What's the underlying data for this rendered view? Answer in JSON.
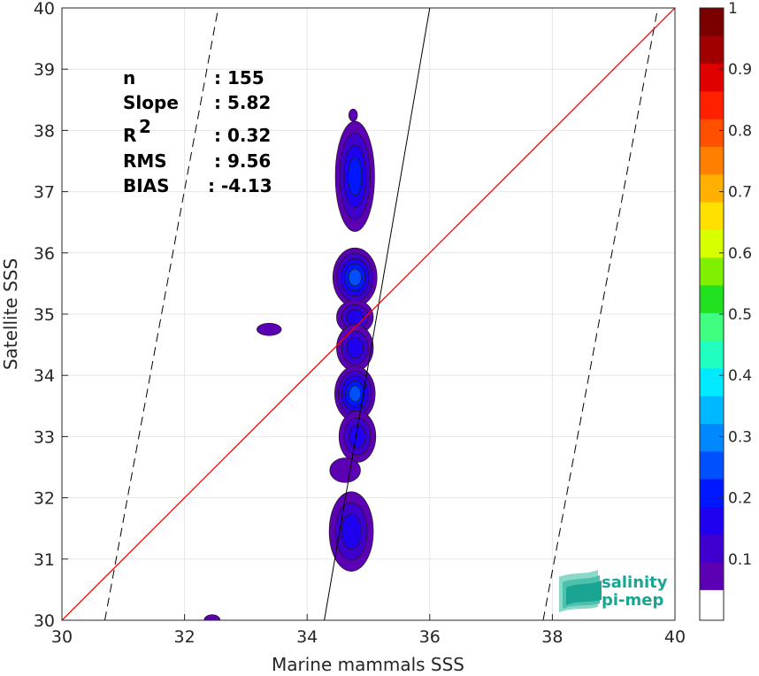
{
  "chart_data": {
    "type": "contour",
    "xlabel": "Marine mammals SSS",
    "ylabel": "Satellite SSS",
    "xlim": [
      30,
      40
    ],
    "ylim": [
      30,
      40
    ],
    "xticks": [
      "30",
      "32",
      "34",
      "36",
      "38",
      "40"
    ],
    "yticks": [
      "30",
      "31",
      "32",
      "33",
      "34",
      "35",
      "36",
      "37",
      "38",
      "39",
      "40"
    ],
    "grid": true,
    "identity_line": {
      "color": "#ff0000",
      "x": [
        30,
        40
      ],
      "y": [
        30,
        40
      ]
    },
    "regression_line": {
      "slope": 5.82,
      "x": [
        34.28,
        36.0
      ],
      "y": [
        30,
        40
      ]
    },
    "bound_lines": [
      {
        "style": "dashed",
        "x": [
          30.7,
          32.55
        ],
        "y": [
          30,
          40
        ]
      },
      {
        "style": "dashed",
        "x": [
          37.85,
          39.72
        ],
        "y": [
          30,
          40
        ]
      }
    ],
    "stats": [
      {
        "label": "n",
        "value": ": 155"
      },
      {
        "label": "Slope",
        "value": ": 5.82"
      },
      {
        "label": "R",
        "sup": "2",
        "value": ": 0.32"
      },
      {
        "label": "RMS",
        "value": ": 9.56"
      },
      {
        "label": "BIAS",
        "value": ": -4.13"
      }
    ],
    "colorbar": {
      "min": 0,
      "max": 1,
      "ticks": [
        "0.1",
        "0.2",
        "0.3",
        "0.4",
        "0.5",
        "0.6",
        "0.7",
        "0.8",
        "0.9",
        "1"
      ],
      "levels": 20,
      "colors": [
        "#ffffff",
        "#5c00b4",
        "#3f00cf",
        "#1f00ef",
        "#0018ff",
        "#0050ff",
        "#0088ff",
        "#00b8ff",
        "#00eaff",
        "#20ffc0",
        "#40ff80",
        "#20e020",
        "#80f000",
        "#d8ff00",
        "#ffe000",
        "#ffb000",
        "#ff8000",
        "#ff5000",
        "#ff2000",
        "#e00000",
        "#a00000",
        "#7a0000"
      ]
    },
    "density_blobs": [
      {
        "x": 34.78,
        "y": 37.25,
        "rx": 0.32,
        "ry": 0.9,
        "level": 4
      },
      {
        "x": 34.78,
        "y": 35.6,
        "rx": 0.36,
        "ry": 0.48,
        "level": 5
      },
      {
        "x": 34.78,
        "y": 34.95,
        "rx": 0.3,
        "ry": 0.28,
        "level": 3
      },
      {
        "x": 34.78,
        "y": 34.45,
        "rx": 0.3,
        "ry": 0.38,
        "level": 3
      },
      {
        "x": 34.78,
        "y": 33.7,
        "rx": 0.33,
        "ry": 0.45,
        "level": 5
      },
      {
        "x": 34.82,
        "y": 33.0,
        "rx": 0.3,
        "ry": 0.42,
        "level": 3
      },
      {
        "x": 34.62,
        "y": 32.45,
        "rx": 0.25,
        "ry": 0.2,
        "level": 1
      },
      {
        "x": 34.72,
        "y": 31.45,
        "rx": 0.36,
        "ry": 0.65,
        "level": 3
      },
      {
        "x": 33.38,
        "y": 34.75,
        "rx": 0.2,
        "ry": 0.1,
        "level": 1
      },
      {
        "x": 32.45,
        "y": 30.0,
        "rx": 0.13,
        "ry": 0.09,
        "level": 1
      },
      {
        "x": 34.75,
        "y": 38.25,
        "rx": 0.07,
        "ry": 0.1,
        "level": 1
      }
    ],
    "legend": {
      "logo_line1": "salinity",
      "logo_line2": "pi-mep"
    }
  }
}
